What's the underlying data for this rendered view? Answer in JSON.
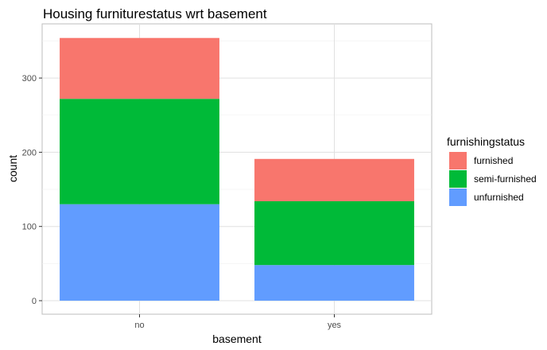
{
  "chart_data": {
    "type": "bar",
    "stacked": true,
    "title": "Housing furniturestatus wrt basement",
    "xlabel": "basement",
    "ylabel": "count",
    "categories": [
      "no",
      "yes"
    ],
    "ylim": [
      0,
      380
    ],
    "yticks": [
      0,
      100,
      200,
      300
    ],
    "grid": true,
    "legend_title": "furnishingstatus",
    "legend_position": "right",
    "series": [
      {
        "name": "unfurnished",
        "values": [
          130,
          48
        ],
        "color": "#619CFF"
      },
      {
        "name": "semi-furnished",
        "values": [
          142,
          86
        ],
        "color": "#00BA38"
      },
      {
        "name": "furnished",
        "values": [
          82,
          57
        ],
        "color": "#F8766D"
      }
    ],
    "legend_order": [
      "furnished",
      "semi-furnished",
      "unfurnished"
    ]
  }
}
